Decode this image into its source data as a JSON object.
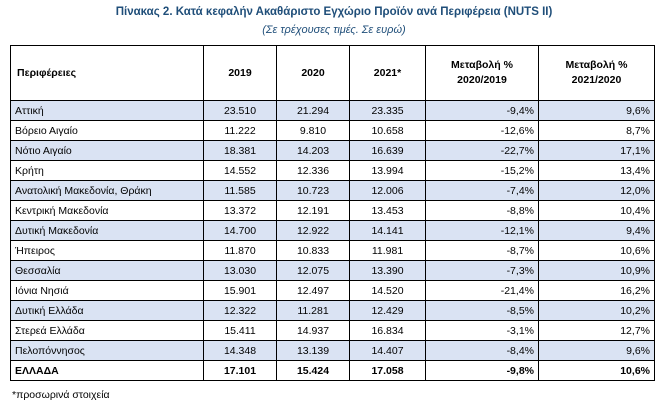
{
  "title": "Πίνακας 2. Κατά κεφαλήν Ακαθάριστο Εγχώριο Προϊόν ανά Περιφέρεια (NUTS II)",
  "subtitle": "(Σε τρέχουσες τιμές. Σε ευρώ)",
  "headers": {
    "region": "Περιφέρειες",
    "y2019": "2019",
    "y2020": "2020",
    "y2021": "2021*",
    "chg1_line1": "Μεταβολή %",
    "chg1_line2": "2020/2019",
    "chg2_line1": "Μεταβολή %",
    "chg2_line2": "2021/2020"
  },
  "rows": [
    {
      "region": "Αττική",
      "y2019": "23.510",
      "y2020": "21.294",
      "y2021": "23.335",
      "chg1": "-9,4%",
      "chg2": "9,6%"
    },
    {
      "region": "Βόρειο Αιγαίο",
      "y2019": "11.222",
      "y2020": "9.810",
      "y2021": "10.658",
      "chg1": "-12,6%",
      "chg2": "8,7%"
    },
    {
      "region": "Νότιο Αιγαίο",
      "y2019": "18.381",
      "y2020": "14.203",
      "y2021": "16.639",
      "chg1": "-22,7%",
      "chg2": "17,1%"
    },
    {
      "region": "Κρήτη",
      "y2019": "14.552",
      "y2020": "12.336",
      "y2021": "13.994",
      "chg1": "-15,2%",
      "chg2": "13,4%"
    },
    {
      "region": "Ανατολική Μακεδονία, Θράκη",
      "y2019": "11.585",
      "y2020": "10.723",
      "y2021": "12.006",
      "chg1": "-7,4%",
      "chg2": "12,0%"
    },
    {
      "region": "Κεντρική Μακεδονία",
      "y2019": "13.372",
      "y2020": "12.191",
      "y2021": "13.453",
      "chg1": "-8,8%",
      "chg2": "10,4%"
    },
    {
      "region": "Δυτική Μακεδονία",
      "y2019": "14.700",
      "y2020": "12.922",
      "y2021": "14.141",
      "chg1": "-12,1%",
      "chg2": "9,4%"
    },
    {
      "region": "Ήπειρος",
      "y2019": "11.870",
      "y2020": "10.833",
      "y2021": "11.981",
      "chg1": "-8,7%",
      "chg2": "10,6%"
    },
    {
      "region": "Θεσσαλία",
      "y2019": "13.030",
      "y2020": "12.075",
      "y2021": "13.390",
      "chg1": "-7,3%",
      "chg2": "10,9%"
    },
    {
      "region": "Ιόνια Νησιά",
      "y2019": "15.901",
      "y2020": "12.497",
      "y2021": "14.520",
      "chg1": "-21,4%",
      "chg2": "16,2%"
    },
    {
      "region": "Δυτική Ελλάδα",
      "y2019": "12.322",
      "y2020": "11.281",
      "y2021": "12.429",
      "chg1": "-8,5%",
      "chg2": "10,2%"
    },
    {
      "region": "Στερεά Ελλάδα",
      "y2019": "15.411",
      "y2020": "14.937",
      "y2021": "16.834",
      "chg1": "-3,1%",
      "chg2": "12,7%"
    },
    {
      "region": "Πελοπόννησος",
      "y2019": "14.348",
      "y2020": "13.139",
      "y2021": "14.407",
      "chg1": "-8,4%",
      "chg2": "9,6%"
    }
  ],
  "total": {
    "region": "ΕΛΛΑΔΑ",
    "y2019": "17.101",
    "y2020": "15.424",
    "y2021": "17.058",
    "chg1": "-9,8%",
    "chg2": "10,6%"
  },
  "footnote": "*προσωρινά στοιχεία",
  "colors": {
    "title": "#1f4e79",
    "row_shade": "#dae3f3"
  }
}
